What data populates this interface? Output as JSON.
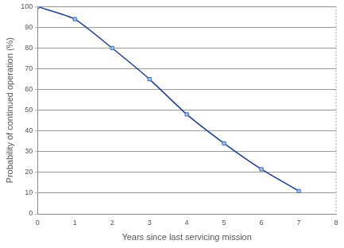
{
  "chart_data": {
    "type": "line",
    "x_label": "Years since last servicing mission",
    "y_label": "Probability of continued operation (%)",
    "x": [
      0,
      1,
      2,
      3,
      4,
      5,
      6,
      7
    ],
    "values": [
      100,
      94,
      80,
      65,
      48,
      34,
      21.5,
      11
    ],
    "color": "#1f3b8f",
    "marker": "square",
    "line_style": "solid",
    "xlim": [
      0,
      8
    ],
    "xticks": [
      0,
      1,
      2,
      3,
      4,
      5,
      6,
      7,
      8
    ],
    "ylim": [
      0,
      100
    ],
    "yticks": [
      0,
      10,
      20,
      30,
      40,
      50,
      60,
      70,
      80,
      90,
      100
    ],
    "grid": true
  }
}
